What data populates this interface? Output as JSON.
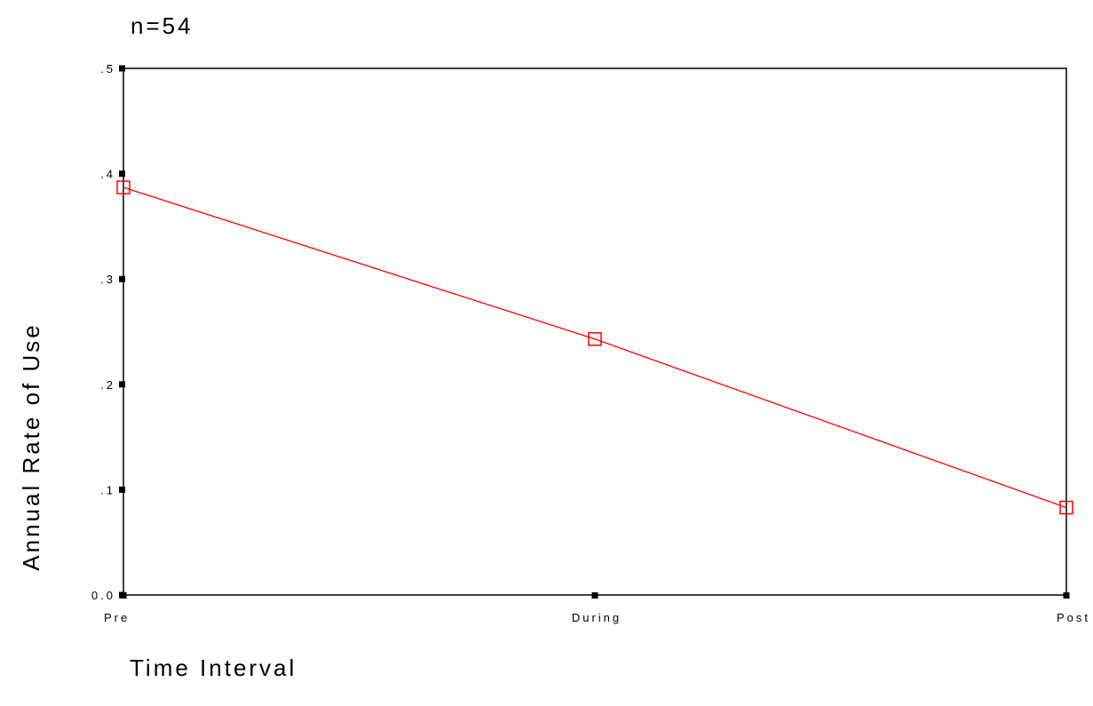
{
  "chart_data": {
    "type": "line",
    "subtitle": "n=54",
    "xlabel": "Time Interval",
    "ylabel": "Annual Rate of Use",
    "categories": [
      "Pre",
      "During",
      "Post"
    ],
    "series": [
      {
        "values": [
          0.387,
          0.243,
          0.083
        ]
      }
    ],
    "ylim": [
      0,
      0.5
    ],
    "yticks": [
      0.0,
      0.1,
      0.2,
      0.3,
      0.4,
      0.5
    ],
    "ytick_labels": [
      "0.0",
      ".1",
      ".2",
      ".3",
      ".4",
      ".5"
    ],
    "grid": false,
    "line_color": "#ff0000",
    "marker": "open-square"
  }
}
